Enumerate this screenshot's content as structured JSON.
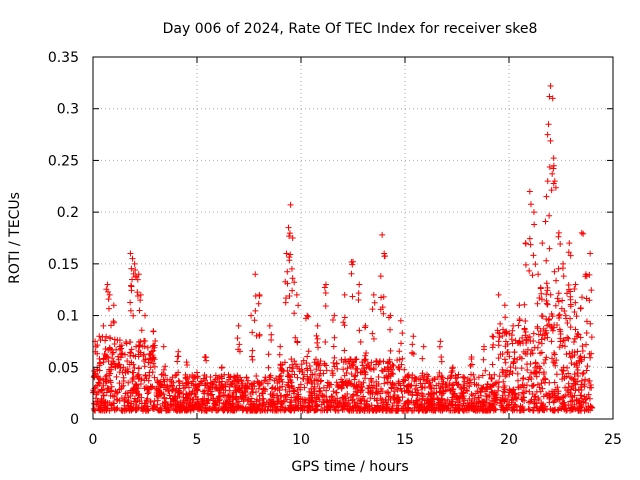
{
  "chart_data": {
    "type": "scatter",
    "title": "Day 006 of 2024, Rate Of TEC Index for receiver ske8",
    "xlabel": "GPS time / hours",
    "ylabel": "ROTI / TECUs",
    "xlim": [
      0,
      25
    ],
    "ylim": [
      0,
      0.35
    ],
    "xticks": [
      0,
      5,
      10,
      15,
      20,
      25
    ],
    "xtick_labels": [
      "0",
      "5",
      "10",
      "15",
      "20",
      "25"
    ],
    "yticks": [
      0,
      0.05,
      0.1,
      0.15,
      0.2,
      0.25,
      0.3,
      0.35
    ],
    "ytick_labels": [
      "0",
      "0.05",
      "0.1",
      "0.15",
      "0.2",
      "0.25",
      "0.3",
      "0.35"
    ],
    "grid": true,
    "marker": "+",
    "color": "#ff0000",
    "series": [
      {
        "name": "ROTI",
        "points": [
          [
            0.1,
            0.075
          ],
          [
            0.3,
            0.08
          ],
          [
            0.5,
            0.09
          ],
          [
            0.7,
            0.13
          ],
          [
            0.8,
            0.12
          ],
          [
            1.0,
            0.11
          ],
          [
            1.3,
            0.07
          ],
          [
            1.8,
            0.16
          ],
          [
            1.9,
            0.155
          ],
          [
            2.0,
            0.15
          ],
          [
            2.2,
            0.14
          ],
          [
            2.3,
            0.12
          ],
          [
            2.5,
            0.1
          ],
          [
            2.9,
            0.085
          ],
          [
            3.4,
            0.07
          ],
          [
            4.1,
            0.065
          ],
          [
            4.5,
            0.055
          ],
          [
            5.0,
            0.045
          ],
          [
            5.4,
            0.06
          ],
          [
            6.2,
            0.05
          ],
          [
            7.0,
            0.09
          ],
          [
            7.6,
            0.1
          ],
          [
            7.8,
            0.14
          ],
          [
            8.0,
            0.12
          ],
          [
            8.5,
            0.09
          ],
          [
            9.0,
            0.07
          ],
          [
            9.3,
            0.16
          ],
          [
            9.4,
            0.185
          ],
          [
            9.5,
            0.207
          ],
          [
            9.6,
            0.175
          ],
          [
            9.8,
            0.12
          ],
          [
            10.3,
            0.1
          ],
          [
            10.8,
            0.09
          ],
          [
            11.2,
            0.13
          ],
          [
            11.6,
            0.1
          ],
          [
            12.1,
            0.12
          ],
          [
            12.5,
            0.152
          ],
          [
            12.8,
            0.13
          ],
          [
            13.1,
            0.09
          ],
          [
            13.5,
            0.12
          ],
          [
            13.9,
            0.178
          ],
          [
            14.0,
            0.16
          ],
          [
            14.3,
            0.1
          ],
          [
            14.8,
            0.095
          ],
          [
            15.4,
            0.08
          ],
          [
            15.9,
            0.07
          ],
          [
            16.7,
            0.075
          ],
          [
            17.3,
            0.05
          ],
          [
            18.2,
            0.06
          ],
          [
            18.8,
            0.07
          ],
          [
            19.2,
            0.08
          ],
          [
            19.5,
            0.12
          ],
          [
            19.8,
            0.11
          ],
          [
            20.2,
            0.09
          ],
          [
            20.5,
            0.11
          ],
          [
            20.8,
            0.17
          ],
          [
            21.0,
            0.22
          ],
          [
            21.2,
            0.2
          ],
          [
            21.4,
            0.14
          ],
          [
            21.6,
            0.17
          ],
          [
            21.8,
            0.215
          ],
          [
            21.9,
            0.285
          ],
          [
            22.0,
            0.322
          ],
          [
            22.1,
            0.31
          ],
          [
            22.2,
            0.23
          ],
          [
            22.4,
            0.18
          ],
          [
            22.6,
            0.15
          ],
          [
            22.9,
            0.17
          ],
          [
            23.2,
            0.13
          ],
          [
            23.5,
            0.18
          ],
          [
            23.7,
            0.14
          ],
          [
            23.9,
            0.16
          ]
        ]
      }
    ]
  }
}
